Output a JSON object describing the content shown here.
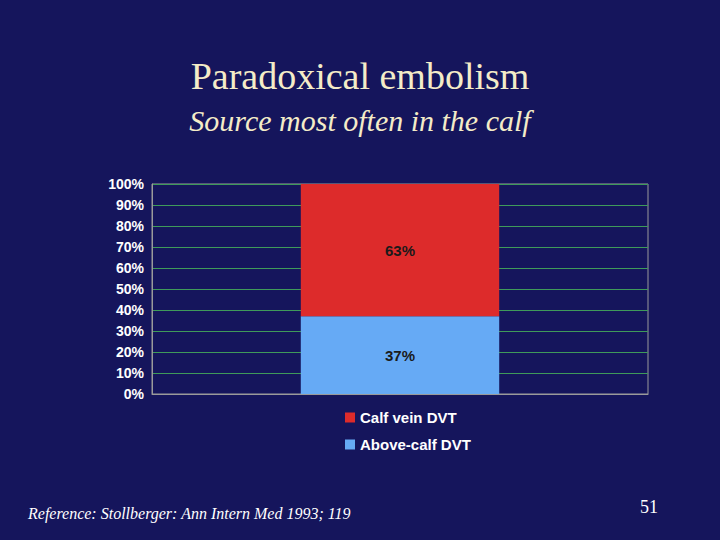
{
  "chart_data": {
    "type": "bar",
    "title": "Paradoxical embolism",
    "subtitle": "Source most often in the calf",
    "categories": [
      null
    ],
    "series": [
      {
        "name": "Above-calf DVT",
        "color": "#66aaf5",
        "values": [
          37
        ],
        "value_labels": [
          "37%"
        ]
      },
      {
        "name": "Calf vein DVT",
        "color": "#dd2b2b",
        "values": [
          63
        ],
        "value_labels": [
          "63%"
        ]
      }
    ],
    "stacked": true,
    "data_labels": true,
    "ylim": [
      0,
      100
    ],
    "yticks": [
      {
        "value": 0,
        "label": "0%"
      },
      {
        "value": 10,
        "label": "10%"
      },
      {
        "value": 20,
        "label": "20%"
      },
      {
        "value": 30,
        "label": "30%"
      },
      {
        "value": 40,
        "label": "40%"
      },
      {
        "value": 50,
        "label": "50%"
      },
      {
        "value": 60,
        "label": "60%"
      },
      {
        "value": 70,
        "label": "70%"
      },
      {
        "value": 80,
        "label": "80%"
      },
      {
        "value": 90,
        "label": "90%"
      },
      {
        "value": 100,
        "label": "100%"
      }
    ],
    "grid": true,
    "legend": "bottom",
    "annotations": [
      "Reference: Stollberger: Ann Intern Med 1993; 119",
      "51"
    ]
  }
}
